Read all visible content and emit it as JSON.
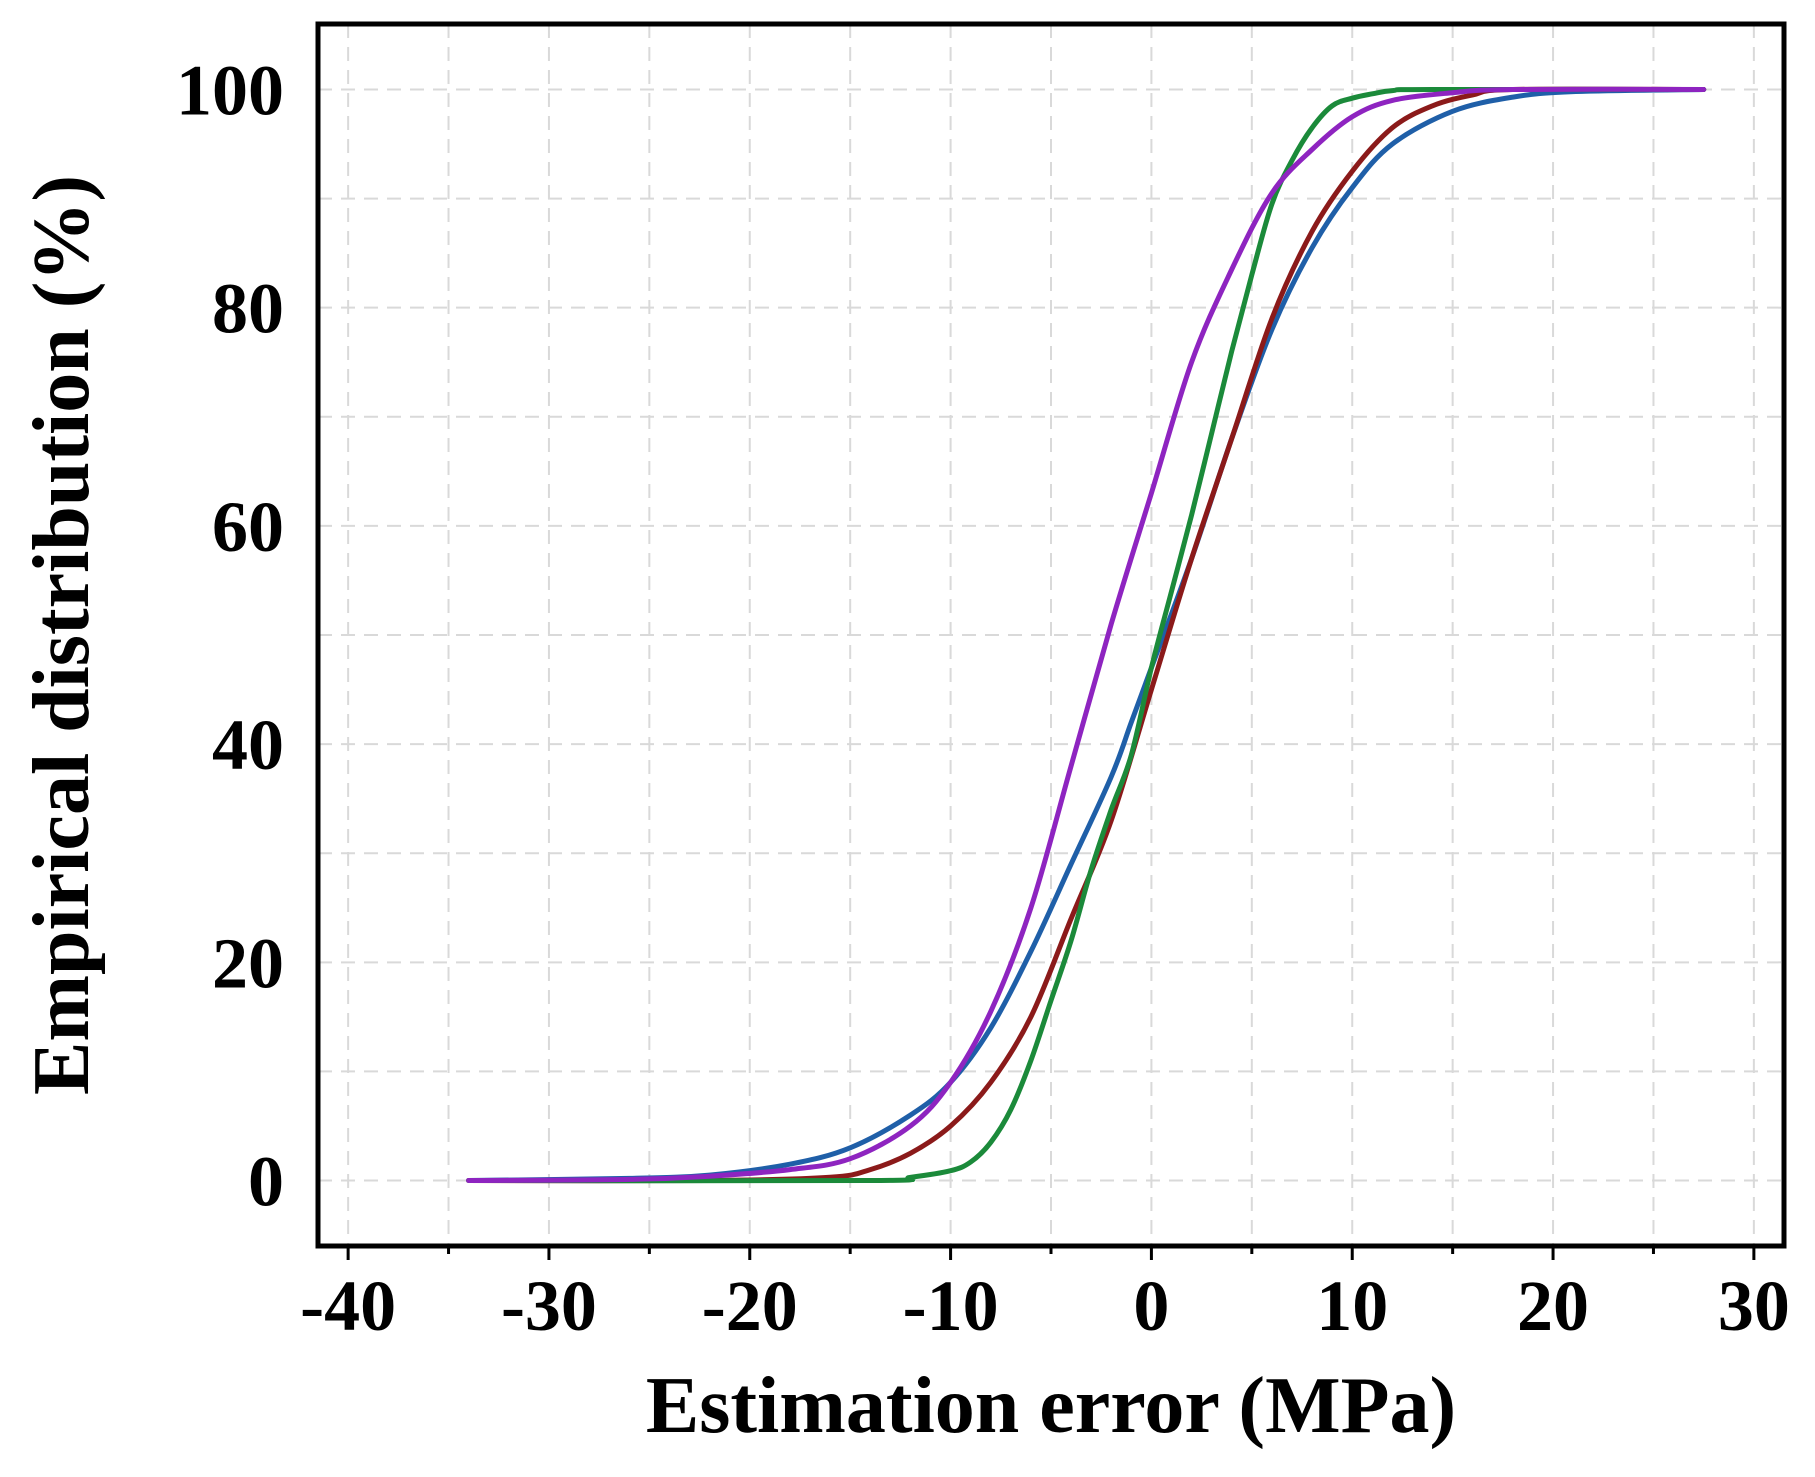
{
  "chart_data": {
    "type": "line",
    "title": "",
    "xlabel": "Estimation error (MPa)",
    "ylabel": "Empirical distribution (%)",
    "xlim": [
      -41.5,
      31.5
    ],
    "ylim": [
      -6,
      106
    ],
    "xticks": [
      -40,
      -30,
      -20,
      -10,
      0,
      10,
      20,
      30
    ],
    "xtick_labels": [
      "-40",
      "-30",
      "-20",
      "-10",
      "0",
      "10",
      "20",
      "30"
    ],
    "yticks": [
      0,
      20,
      40,
      60,
      80,
      100
    ],
    "ytick_labels": [
      "0",
      "20",
      "40",
      "60",
      "80",
      "100"
    ],
    "grid": true,
    "legend": "none",
    "series": [
      {
        "name": "blue",
        "color": "#1f5fa8",
        "x": [
          -34,
          -26,
          -22,
          -18,
          -15,
          -12,
          -10,
          -8,
          -6,
          -4,
          -2,
          -1,
          0,
          2,
          4,
          6,
          8,
          10,
          12,
          15,
          18,
          21,
          27.5
        ],
        "y": [
          0,
          0.2,
          0.5,
          1.5,
          3,
          6,
          9,
          14,
          21,
          29,
          37,
          42,
          47,
          57,
          68,
          78,
          85.5,
          91,
          95,
          98,
          99.3,
          99.8,
          100
        ]
      },
      {
        "name": "red",
        "color": "#8b1a1a",
        "x": [
          -34,
          -22,
          -16,
          -14,
          -12,
          -10,
          -8,
          -6,
          -4,
          -2,
          0,
          2,
          4,
          6,
          8,
          10,
          12,
          14,
          16,
          18,
          27.5
        ],
        "y": [
          0,
          0,
          0.3,
          1,
          2.5,
          5,
          9,
          15,
          24,
          33,
          45,
          57,
          68,
          79,
          87,
          92.5,
          96.5,
          98.5,
          99.5,
          100,
          100
        ]
      },
      {
        "name": "green",
        "color": "#1b8a3a",
        "x": [
          -34,
          -14,
          -12,
          -10,
          -9,
          -8,
          -7,
          -6,
          -5,
          -4,
          -3,
          -2,
          -1,
          0,
          1,
          2,
          3,
          4,
          5,
          6,
          7,
          8,
          9,
          10,
          11,
          12,
          14,
          27.5
        ],
        "y": [
          0,
          0,
          0.3,
          0.9,
          1.7,
          3.5,
          6.5,
          11,
          16.5,
          22,
          28.5,
          34,
          39,
          47,
          54,
          61,
          68.5,
          76,
          83,
          89.5,
          93.5,
          96.5,
          98.5,
          99.2,
          99.6,
          99.9,
          100,
          100
        ]
      },
      {
        "name": "purple",
        "color": "#8e24c0",
        "x": [
          -34,
          -26,
          -22,
          -18,
          -15,
          -12,
          -10,
          -8,
          -6,
          -4,
          -2,
          0,
          2,
          4,
          6,
          8,
          10,
          12,
          15,
          18,
          27.5
        ],
        "y": [
          0,
          0.1,
          0.4,
          1,
          2,
          5,
          9,
          15.5,
          25,
          38,
          51,
          63,
          75,
          83.5,
          90.5,
          94.5,
          97.5,
          99,
          99.7,
          100,
          100
        ]
      }
    ]
  }
}
